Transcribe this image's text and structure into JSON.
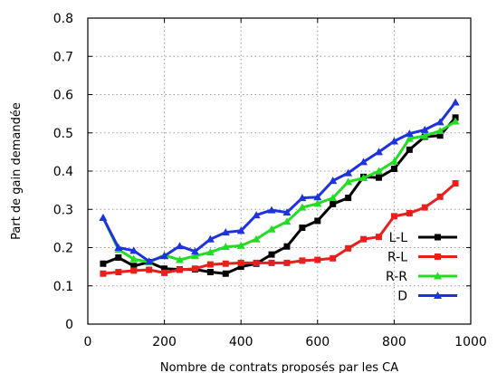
{
  "chart_data": {
    "type": "line",
    "title": "",
    "xlabel": "Nombre de contrats proposés par les CA",
    "ylabel": "Part de gain demandée",
    "xlim": [
      0,
      1000
    ],
    "ylim": [
      0,
      0.8
    ],
    "xticks": [
      0,
      200,
      400,
      600,
      800,
      1000
    ],
    "yticks": [
      0,
      0.1,
      0.2,
      0.3,
      0.4,
      0.5,
      0.6,
      0.7,
      0.8
    ],
    "grid": true,
    "legend_position": "bottom-right",
    "x": [
      40,
      80,
      120,
      160,
      200,
      240,
      280,
      320,
      360,
      400,
      440,
      480,
      520,
      560,
      600,
      640,
      680,
      720,
      760,
      800,
      840,
      880,
      920,
      960
    ],
    "series": [
      {
        "name": "L-L",
        "color": "#000000",
        "marker": "square",
        "values": [
          0.158,
          0.174,
          0.152,
          0.162,
          0.145,
          0.143,
          0.143,
          0.136,
          0.132,
          0.15,
          0.158,
          0.182,
          0.203,
          0.252,
          0.27,
          0.314,
          0.33,
          0.385,
          0.383,
          0.406,
          0.456,
          0.49,
          0.493,
          0.54
        ]
      },
      {
        "name": "R-L",
        "color": "#e8201c",
        "marker": "square",
        "values": [
          0.132,
          0.136,
          0.14,
          0.142,
          0.134,
          0.142,
          0.145,
          0.156,
          0.158,
          0.16,
          0.16,
          0.16,
          0.16,
          0.166,
          0.168,
          0.172,
          0.198,
          0.222,
          0.228,
          0.282,
          0.29,
          0.305,
          0.333,
          0.368
        ]
      },
      {
        "name": "R-R",
        "color": "#22dd22",
        "marker": "triangle",
        "values": [
          0.278,
          0.195,
          0.17,
          0.162,
          0.18,
          0.168,
          0.178,
          0.188,
          0.202,
          0.205,
          0.222,
          0.248,
          0.268,
          0.305,
          0.315,
          0.33,
          0.372,
          0.382,
          0.4,
          0.425,
          0.485,
          0.492,
          0.505,
          0.53
        ]
      },
      {
        "name": "D",
        "color": "#1e32e0",
        "marker": "triangle",
        "values": [
          0.278,
          0.2,
          0.192,
          0.164,
          0.178,
          0.204,
          0.19,
          0.222,
          0.24,
          0.244,
          0.285,
          0.298,
          0.292,
          0.33,
          0.332,
          0.375,
          0.395,
          0.424,
          0.45,
          0.478,
          0.498,
          0.508,
          0.528,
          0.58
        ]
      }
    ]
  }
}
